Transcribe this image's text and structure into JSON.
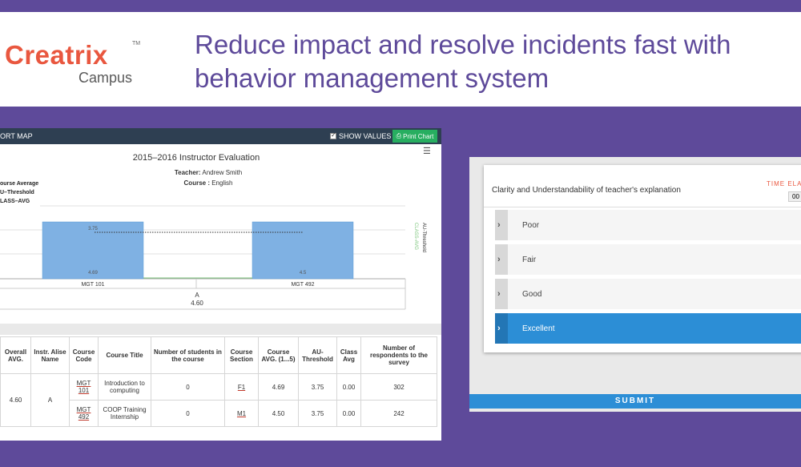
{
  "header": {
    "logo_name": "Creatrix",
    "logo_tm": "TM",
    "logo_sub": "Campus",
    "headline_line1": "Reduce impact and resolve incidents fast with",
    "headline_line2": "behavior management system"
  },
  "report": {
    "toolbar_title": "ORT MAP",
    "show_values_label": "SHOW VALUES",
    "print_label": "Print Chart",
    "chart_title": "2015–2016 Instructor Evaluation",
    "teacher_label": "Teacher:",
    "teacher_value": "Andrew Smith",
    "course_label": "Course :",
    "course_value": "English",
    "legend": [
      "ourse Average",
      "U–Threshold",
      "LASS–AVG"
    ],
    "right_legend": [
      "AU-Threshold",
      "CLASS-AVG"
    ]
  },
  "chart_data": {
    "type": "bar",
    "categories": [
      "MGT 101",
      "MGT 492"
    ],
    "series": [
      {
        "name": "Course Average",
        "values": [
          4.69,
          4.5
        ]
      },
      {
        "name": "AU-Threshold",
        "values": [
          3.75,
          3.75
        ]
      }
    ],
    "value_labels_top": [
      "3.75",
      ""
    ],
    "value_labels_bottom": [
      "4.69",
      "4.5"
    ],
    "group_label": "A",
    "group_value": "4.60",
    "ylim": [
      0,
      5.5
    ]
  },
  "table": {
    "headers": [
      "Overall AVG.",
      "Instr. Alise Name",
      "Course Code",
      "Course Title",
      "Number of students in the course",
      "Course Section",
      "Course AVG. (1...5)",
      "AU-Threshold",
      "Class Avg",
      "Number of respondents to the survey"
    ],
    "overall_avg": "4.60",
    "alias": "A",
    "rows": [
      {
        "code": "MGT 101",
        "title": "Introduction to computing",
        "students": "0",
        "section": "F1",
        "avg": "4.69",
        "threshold": "3.75",
        "class_avg": "0.00",
        "respondents": "302"
      },
      {
        "code": "MGT 492",
        "title": "COOP Training Internship",
        "students": "0",
        "section": "M1",
        "avg": "4.50",
        "threshold": "3.75",
        "class_avg": "0.00",
        "respondents": "242"
      }
    ]
  },
  "poll": {
    "question": "Clarity and Understandability of teacher's  explanation",
    "time_label": "TIME ELA",
    "time_value": "00",
    "options": [
      "Poor",
      "Fair",
      "Good",
      "Excellent"
    ],
    "selected": "Excellent",
    "submit_label": "SUBMIT"
  },
  "colors": {
    "background": "#5e4a9a",
    "brand": "#e9573f",
    "accent": "#2c8ed6",
    "bar": "#7fb1e3",
    "print_button": "#27ae60"
  }
}
